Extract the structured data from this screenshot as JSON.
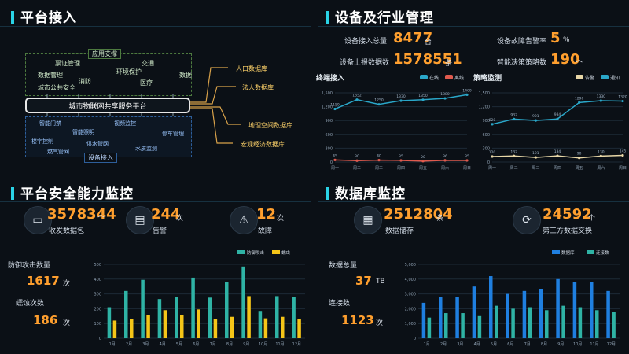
{
  "sections": {
    "access": "平台接入",
    "devices": "设备及行业管理",
    "security": "平台安全能力监控",
    "database": "数据库监控"
  },
  "platform": {
    "center": "城市物联网共享服务平台",
    "app_support": "应用支撑",
    "device_access": "设备接入",
    "top_items": [
      "票证管理",
      "交通",
      "数据管理",
      "环境保护",
      "数据",
      "消防",
      "医疗",
      "城市公共安全"
    ],
    "bottom_items": [
      "智能门禁",
      "视频监控",
      "智能照明",
      "停车管理",
      "楼宇控制",
      "供水管网",
      "水质监测",
      "燃气管网"
    ],
    "outputs": [
      "人口数据库",
      "法人数据库",
      "地理空间数据库",
      "宏观经济数据库"
    ]
  },
  "device_stats": {
    "items": [
      {
        "label": "设备接入总量",
        "value": "8477",
        "unit": "台"
      },
      {
        "label": "设备故障告警率",
        "value": "5",
        "unit": "%"
      },
      {
        "label": "设备上报数据数",
        "value": "1578551",
        "unit": "条"
      },
      {
        "label": "智能决策策略数",
        "value": "190",
        "unit": "个"
      }
    ]
  },
  "terminal_chart": {
    "title": "终端接入",
    "legend": [
      "在线",
      "离线"
    ],
    "colors": [
      "#2aa7c9",
      "#e05a4e"
    ],
    "yticks": [
      "1,500",
      "1,200",
      "900",
      "600",
      "300",
      "0"
    ],
    "xticks": [
      "周一",
      "周二",
      "周三",
      "周四",
      "周五",
      "周六",
      "周日"
    ],
    "online": [
      1150,
      1352,
      1250,
      1330,
      1350,
      1380,
      1460
    ],
    "offline": [
      45,
      30,
      40,
      35,
      20,
      36,
      35
    ]
  },
  "policy_chart": {
    "title": "策略监测",
    "legend": [
      "告警",
      "通知"
    ],
    "colors": [
      "#e8d7a7",
      "#2aa7c9"
    ],
    "yticks": [
      "1,500",
      "1,200",
      "900",
      "600",
      "300",
      "0"
    ],
    "xticks": [
      "周一",
      "周二",
      "周三",
      "周四",
      "周五",
      "周六",
      "周日"
    ],
    "alarm": [
      120,
      132,
      101,
      134,
      90,
      130,
      145
    ],
    "notice": [
      820,
      932,
      901,
      934,
      1290,
      1330,
      1320
    ]
  },
  "security_stats": [
    {
      "icon": "monitor-icon",
      "value": "3578344",
      "unit": "个",
      "label": "收发数据包"
    },
    {
      "icon": "document-alert-icon",
      "value": "244",
      "unit": "次",
      "label": "告警"
    },
    {
      "icon": "warning-icon",
      "value": "12",
      "unit": "次",
      "label": "故障"
    }
  ],
  "security_side": [
    {
      "label": "防御攻击数量",
      "value": "1617",
      "unit": "次"
    },
    {
      "label": "蠕蚀次数",
      "value": "186",
      "unit": "次"
    }
  ],
  "security_chart": {
    "type": "bar",
    "categories": [
      "1月",
      "2月",
      "3月",
      "4月",
      "5月",
      "6月",
      "7月",
      "8月",
      "9月",
      "10月",
      "11月",
      "12月"
    ],
    "series": [
      {
        "name": "防御攻击",
        "color": "#2fb3a5",
        "values": [
          210,
          320,
          395,
          265,
          280,
          410,
          275,
          380,
          485,
          185,
          285,
          280
        ]
      },
      {
        "name": "蠕虫",
        "color": "#f5c518",
        "values": [
          120,
          130,
          155,
          190,
          155,
          195,
          130,
          145,
          285,
          135,
          145,
          130
        ]
      }
    ],
    "yticks": [
      "500",
      "400",
      "300",
      "200",
      "100",
      "0"
    ],
    "ylim": [
      0,
      500
    ]
  },
  "db_stats": [
    {
      "icon": "database-icon",
      "value": "2512804",
      "unit": "条",
      "label": "数据储存"
    },
    {
      "icon": "network-icon",
      "value": "24592",
      "unit": "个",
      "label": "第三方数据交换"
    }
  ],
  "db_side": [
    {
      "label": "数据总量",
      "value": "37",
      "unit": "TB"
    },
    {
      "label": "连接数",
      "value": "1123",
      "unit": "次"
    }
  ],
  "db_chart": {
    "type": "bar",
    "categories": [
      "1月",
      "2月",
      "3月",
      "4月",
      "5月",
      "6月",
      "7月",
      "8月",
      "9月",
      "10月",
      "11月",
      "12月"
    ],
    "series": [
      {
        "name": "数据库",
        "color": "#1f7fe0",
        "values": [
          2400,
          2800,
          2800,
          3500,
          4200,
          3000,
          3200,
          3300,
          4000,
          3800,
          3800,
          3200
        ]
      },
      {
        "name": "连接数",
        "color": "#2fb3a5",
        "values": [
          1400,
          1700,
          1700,
          1500,
          2200,
          2000,
          2100,
          1900,
          2200,
          2100,
          1900,
          1800
        ]
      }
    ],
    "yticks": [
      "5,000",
      "4,000",
      "3,000",
      "2,000",
      "1,000",
      "0"
    ],
    "ylim": [
      0,
      5000
    ]
  }
}
